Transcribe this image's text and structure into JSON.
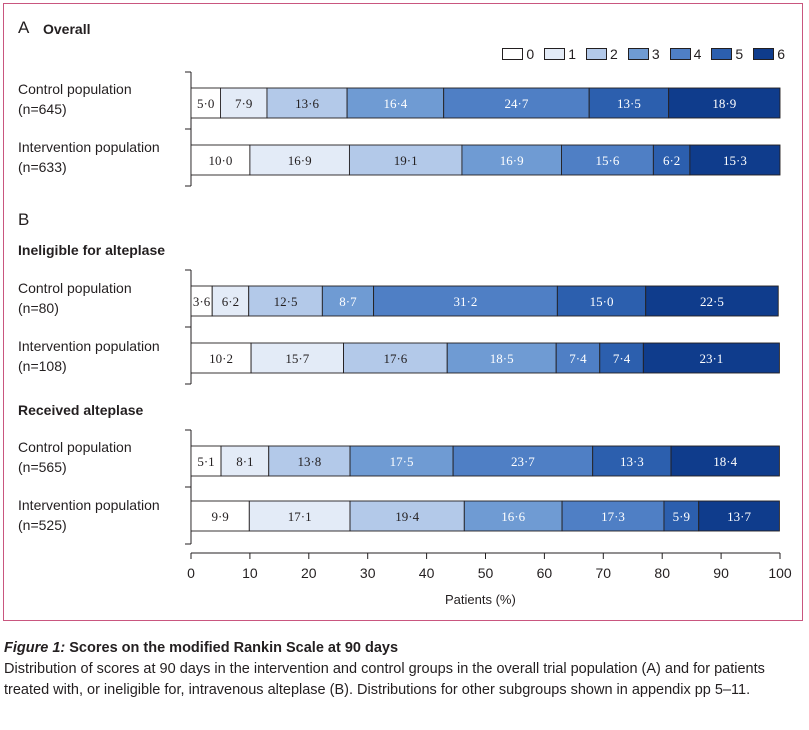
{
  "section_a": {
    "letter": "A",
    "title": "Overall"
  },
  "section_b": {
    "letter": "B"
  },
  "groups": {
    "ineligible": "Ineligible for alteplase",
    "received": "Received alteplase"
  },
  "legend": [
    {
      "label": "0",
      "color": "#ffffff"
    },
    {
      "label": "1",
      "color": "#e3ebf7"
    },
    {
      "label": "2",
      "color": "#b3c9e9"
    },
    {
      "label": "3",
      "color": "#6f9bd3"
    },
    {
      "label": "4",
      "color": "#4f7fc5"
    },
    {
      "label": "5",
      "color": "#2c5fae"
    },
    {
      "label": "6",
      "color": "#0f3c8c"
    }
  ],
  "caption": {
    "figure_label": "Figure 1:",
    "figure_title": "Scores on the modified Rankin Scale at 90 days",
    "text": "Distribution of scores at 90 days in the intervention and control groups in the overall trial population (A) and for patients treated with, or ineligible for, intravenous alteplase (B). Distributions for other subgroups shown in appendix pp 5–11."
  },
  "chart_data": {
    "type": "bar",
    "orientation": "horizontal",
    "stacked": true,
    "normalized": true,
    "xlabel": "Patients (%)",
    "xlim": [
      0,
      100
    ],
    "xticks": [
      "0",
      "10",
      "20",
      "30",
      "40",
      "50",
      "60",
      "70",
      "80",
      "90",
      "100"
    ],
    "categories": [
      "0",
      "1",
      "2",
      "3",
      "4",
      "5",
      "6"
    ],
    "panels": [
      {
        "rows": [
          {
            "name": "Control population",
            "n": "(n=645)",
            "values": [
              5.0,
              7.9,
              13.6,
              16.4,
              24.7,
              13.5,
              18.9
            ],
            "labels": [
              "5·0",
              "7·9",
              "13·6",
              "16·4",
              "24·7",
              "13·5",
              "18·9"
            ]
          },
          {
            "name": "Intervention population",
            "n": "(n=633)",
            "values": [
              10.0,
              16.9,
              19.1,
              16.9,
              15.6,
              6.2,
              15.3
            ],
            "labels": [
              "10·0",
              "16·9",
              "19·1",
              "16·9",
              "15·6",
              "6·2",
              "15·3"
            ]
          }
        ]
      },
      {
        "rows": [
          {
            "name": "Control population",
            "n": "(n=80)",
            "values": [
              3.6,
              6.2,
              12.5,
              8.7,
              31.2,
              15.0,
              22.5
            ],
            "labels": [
              "3·6",
              "6·2",
              "12·5",
              "8·7",
              "31·2",
              "15·0",
              "22·5"
            ]
          },
          {
            "name": "Intervention population",
            "n": "(n=108)",
            "values": [
              10.2,
              15.7,
              17.6,
              18.5,
              7.4,
              7.4,
              23.1
            ],
            "labels": [
              "10·2",
              "15·7",
              "17·6",
              "18·5",
              "7·4",
              "7·4",
              "23·1"
            ]
          }
        ]
      },
      {
        "rows": [
          {
            "name": "Control population",
            "n": "(n=565)",
            "values": [
              5.1,
              8.1,
              13.8,
              17.5,
              23.7,
              13.3,
              18.4
            ],
            "labels": [
              "5·1",
              "8·1",
              "13·8",
              "17·5",
              "23·7",
              "13·3",
              "18·4"
            ]
          },
          {
            "name": "Intervention population",
            "n": "(n=525)",
            "values": [
              9.9,
              17.1,
              19.4,
              16.6,
              17.3,
              5.9,
              13.7
            ],
            "labels": [
              "9·9",
              "17·1",
              "19·4",
              "16·6",
              "17·3",
              "5·9",
              "13·7"
            ]
          }
        ]
      }
    ]
  }
}
